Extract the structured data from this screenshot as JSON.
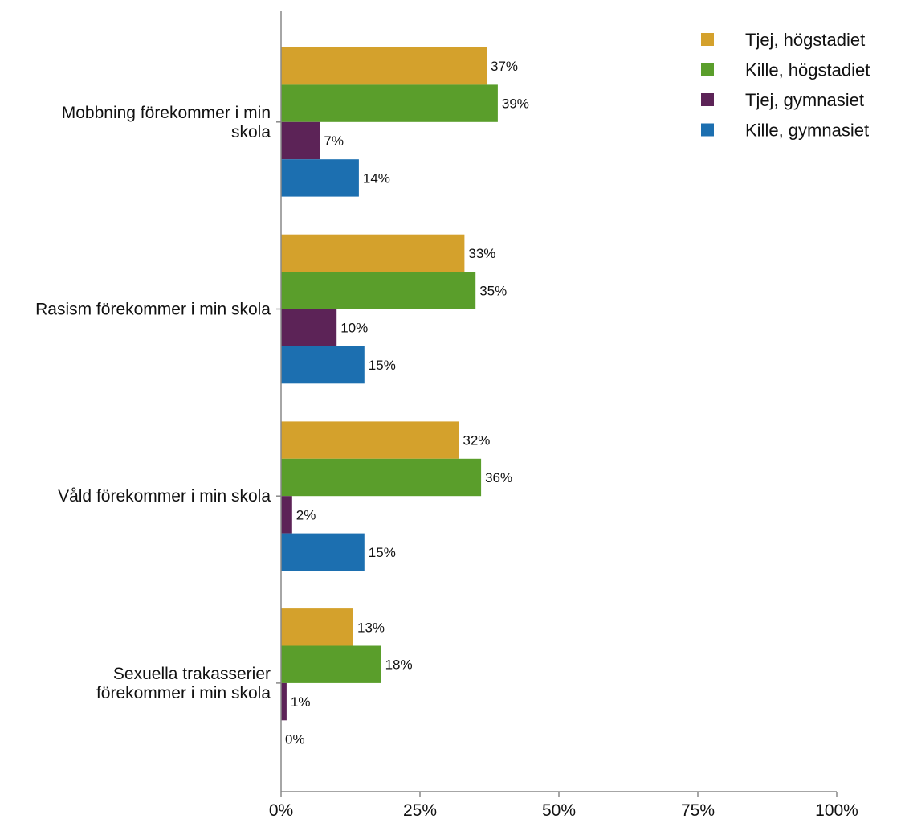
{
  "chart_data": {
    "type": "bar",
    "orientation": "horizontal",
    "title": "",
    "xlabel": "",
    "ylabel": "",
    "categories": [
      [
        "Mobbning förekommer i min",
        "skola"
      ],
      [
        "Rasism förekommer i min skola"
      ],
      [
        "Våld förekommer i min skola"
      ],
      [
        "Sexuella trakasserier",
        "förekommer i min skola"
      ]
    ],
    "series": [
      {
        "name": "Tjej, högstadiet",
        "color": "#D4A12C",
        "values": [
          37,
          33,
          32,
          13
        ],
        "labels": [
          "37%",
          "33%",
          "32%",
          "13%"
        ]
      },
      {
        "name": "Kille, högstadiet",
        "color": "#5A9E2B",
        "values": [
          39,
          35,
          36,
          18
        ],
        "labels": [
          "39%",
          "35%",
          "36%",
          "18%"
        ]
      },
      {
        "name": "Tjej, gymnasiet",
        "color": "#5C2357",
        "values": [
          7,
          10,
          2,
          1
        ],
        "labels": [
          "7%",
          "10%",
          "2%",
          "1%"
        ]
      },
      {
        "name": "Kille, gymnasiet",
        "color": "#1C6FB0",
        "values": [
          14,
          15,
          15,
          0
        ],
        "labels": [
          "14%",
          "15%",
          "15%",
          "0%"
        ]
      }
    ],
    "xlim": [
      0,
      100
    ],
    "xticks": [
      0,
      25,
      50,
      75,
      100
    ],
    "xtick_labels": [
      "0%",
      "25%",
      "50%",
      "75%",
      "100%"
    ],
    "grid": false,
    "legend_position": "top-right"
  }
}
